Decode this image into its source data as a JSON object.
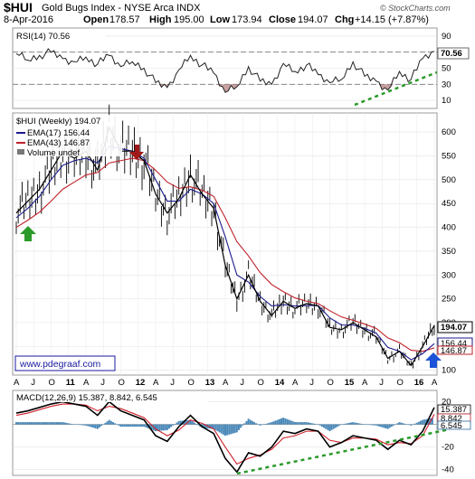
{
  "header": {
    "symbol": "$HUI",
    "name": "Gold Bugs Index - NYSE Arca  INDX",
    "date": "8-Apr-2016",
    "open_label": "Open",
    "open": "178.57",
    "high_label": "High",
    "high": "195.00",
    "low_label": "Low",
    "low": "173.94",
    "close_label": "Close",
    "close": "194.07",
    "chg_label": "Chg",
    "chg": "+14.15 (+7.87%)",
    "provider": "© StockCharts.com"
  },
  "rsi_panel": {
    "label": "RSI(14) 70.56",
    "current": "70.56",
    "ticks": [
      90,
      70,
      50,
      30,
      10
    ],
    "overbought": 70,
    "oversold": 30
  },
  "price_panel": {
    "label": "$HUI (Weekly) 194.07",
    "legend": [
      {
        "label": "EMA(17) 156.44",
        "color": "#1a1a8c"
      },
      {
        "label": "EMA(43) 146.87",
        "color": "#c0202a"
      },
      {
        "label": "Volume undef",
        "color": "#777777"
      }
    ],
    "ticks": [
      600,
      550,
      500,
      450,
      400,
      350,
      300,
      250,
      200,
      150,
      100
    ],
    "tag_close": "194.07",
    "tag_ema17": "156.44",
    "tag_ema43": "146.87",
    "website": "www.pdegraaf.com"
  },
  "x_axis": {
    "labels": [
      "A",
      "J",
      "O",
      "11",
      "A",
      "J",
      "O",
      "12",
      "A",
      "J",
      "O",
      "13",
      "A",
      "J",
      "O",
      "14",
      "A",
      "J",
      "O",
      "15",
      "A",
      "J",
      "O",
      "16",
      "A"
    ]
  },
  "macd_panel": {
    "label": "MACD(12,26,9) 15.387, 8.842, 6.545",
    "ticks": [
      20,
      0,
      -20,
      -40
    ],
    "tag_macd": "15.387",
    "tag_signal": "8.842",
    "tag_hist": "6.545"
  },
  "annotations": {
    "arrows": [
      {
        "name": "buy-arrow-2010",
        "direction": "up",
        "color": "#2a9a2a"
      },
      {
        "name": "sell-arrow-2011",
        "direction": "down",
        "color": "#a01818"
      },
      {
        "name": "buy-arrow-2016",
        "direction": "up",
        "color": "#1c52d8"
      }
    ],
    "trendline_color": "#2a9a2a"
  },
  "chart_data": {
    "type": "line",
    "x": [
      "2010-04",
      "2010-06",
      "2010-08",
      "2010-10",
      "2010-12",
      "2011-02",
      "2011-04",
      "2011-06",
      "2011-08",
      "2011-10",
      "2011-12",
      "2012-02",
      "2012-04",
      "2012-06",
      "2012-08",
      "2012-10",
      "2012-12",
      "2013-02",
      "2013-04",
      "2013-06",
      "2013-08",
      "2013-10",
      "2013-12",
      "2014-02",
      "2014-04",
      "2014-06",
      "2014-08",
      "2014-10",
      "2014-12",
      "2015-02",
      "2015-04",
      "2015-06",
      "2015-08",
      "2015-10",
      "2015-12",
      "2016-02",
      "2016-04"
    ],
    "series": [
      {
        "name": "$HUI",
        "values": [
          430,
          455,
          480,
          520,
          560,
          545,
          560,
          520,
          610,
          560,
          560,
          540,
          470,
          430,
          460,
          510,
          470,
          440,
          320,
          250,
          300,
          245,
          215,
          245,
          230,
          240,
          235,
          190,
          185,
          200,
          185,
          170,
          125,
          140,
          110,
          150,
          194
        ]
      },
      {
        "name": "EMA(17)",
        "values": [
          420,
          440,
          465,
          500,
          530,
          540,
          545,
          535,
          570,
          565,
          560,
          545,
          500,
          455,
          455,
          480,
          470,
          450,
          380,
          300,
          285,
          255,
          235,
          238,
          235,
          236,
          236,
          210,
          195,
          195,
          188,
          178,
          148,
          140,
          122,
          135,
          156
        ]
      },
      {
        "name": "EMA(43)",
        "values": [
          400,
          415,
          432,
          455,
          480,
          495,
          510,
          515,
          535,
          540,
          545,
          540,
          520,
          495,
          482,
          485,
          478,
          465,
          420,
          370,
          340,
          305,
          280,
          265,
          252,
          245,
          240,
          225,
          212,
          205,
          197,
          188,
          168,
          158,
          142,
          140,
          147
        ]
      }
    ],
    "ylim": [
      90,
      640
    ],
    "rsi_values": [
      68,
      60,
      66,
      70,
      62,
      58,
      64,
      55,
      66,
      52,
      58,
      50,
      32,
      26,
      48,
      66,
      54,
      44,
      20,
      27,
      52,
      34,
      30,
      56,
      46,
      54,
      42,
      32,
      36,
      58,
      40,
      34,
      23,
      46,
      36,
      62,
      71
    ],
    "rsi_ylim": [
      0,
      100
    ],
    "macd_values": [
      10,
      12,
      15,
      18,
      20,
      18,
      16,
      8,
      20,
      12,
      8,
      4,
      -10,
      -15,
      -2,
      8,
      -2,
      -8,
      -30,
      -42,
      -25,
      -28,
      -20,
      -6,
      -8,
      -4,
      -6,
      -20,
      -16,
      -10,
      -12,
      -14,
      -22,
      -14,
      -18,
      -6,
      15
    ],
    "signal_values": [
      8,
      10,
      13,
      16,
      18,
      18,
      17,
      12,
      16,
      14,
      10,
      6,
      -4,
      -10,
      -5,
      4,
      1,
      -4,
      -20,
      -35,
      -30,
      -27,
      -22,
      -12,
      -10,
      -6,
      -6,
      -14,
      -16,
      -12,
      -12,
      -13,
      -18,
      -16,
      -17,
      -10,
      9
    ],
    "macd_ylim": [
      -45,
      30
    ]
  }
}
